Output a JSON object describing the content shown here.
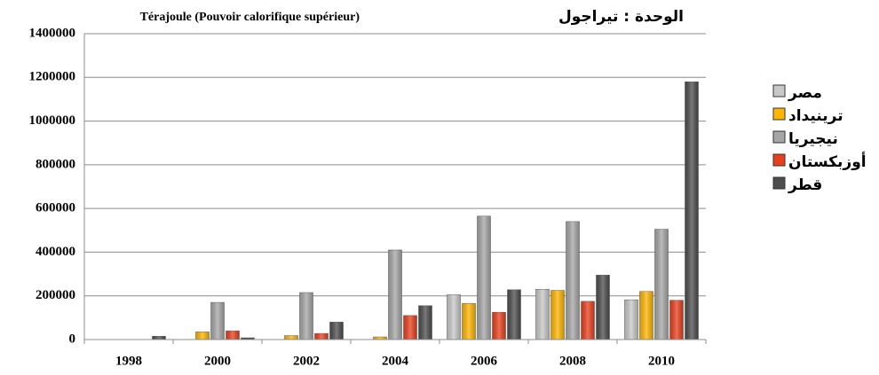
{
  "chart_data": {
    "type": "bar",
    "title": "Térajoule (Pouvoir calorifique supérieur)",
    "unit_label": "الوحدة : تيراجول",
    "categories": [
      "1998",
      "2000",
      "2002",
      "2004",
      "2006",
      "2008",
      "2010"
    ],
    "series": [
      {
        "name": "مصر",
        "color": "#c8c8c8",
        "values": [
          0,
          0,
          0,
          0,
          205000,
          230000,
          182000
        ]
      },
      {
        "name": "ترينيداد",
        "color": "#ffb400",
        "values": [
          0,
          35000,
          18000,
          12000,
          165000,
          225000,
          220000
        ]
      },
      {
        "name": "نيجيريا",
        "color": "#a6a6a6",
        "values": [
          0,
          170000,
          215000,
          410000,
          565000,
          540000,
          505000
        ]
      },
      {
        "name": "أوزبكستان",
        "color": "#e8401c",
        "values": [
          0,
          40000,
          28000,
          110000,
          125000,
          175000,
          180000
        ]
      },
      {
        "name": "قطر",
        "color": "#4d4d4d",
        "values": [
          15000,
          8000,
          80000,
          155000,
          228000,
          295000,
          1180000
        ]
      }
    ],
    "ylim": [
      0,
      1400000
    ],
    "yticks": [
      0,
      200000,
      400000,
      600000,
      800000,
      1000000,
      1200000,
      1400000
    ],
    "grid": true,
    "legend": "right"
  }
}
